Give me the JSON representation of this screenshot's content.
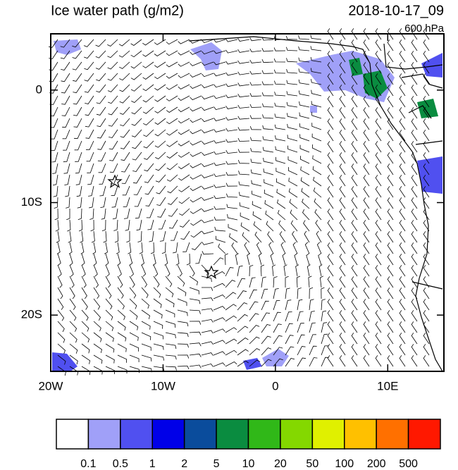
{
  "title": "Ice water path (g/m2)",
  "date": "2018-10-17_09",
  "level": "600 hPa",
  "map": {
    "xlim": [
      -20,
      15
    ],
    "ylim": [
      -25,
      5
    ],
    "xticks": [
      {
        "value": -20,
        "label": "20W"
      },
      {
        "value": -10,
        "label": "10W"
      },
      0,
      {
        "value": 10,
        "label": "10E"
      }
    ],
    "yticks": [
      0,
      {
        "value": -10,
        "label": "10S"
      },
      {
        "value": -20,
        "label": "20S"
      }
    ]
  },
  "colorbar": {
    "levels": [
      0.1,
      0.5,
      1,
      2,
      5,
      10,
      20,
      50,
      100,
      200,
      500
    ],
    "colors": [
      "#ffffff",
      "#a0a0f8",
      "#5050f0",
      "#0000e8",
      "#0a4c9c",
      "#0a8c40",
      "#30b818",
      "#84d800",
      "#e0f000",
      "#ffc000",
      "#ff7000",
      "#ff1800"
    ]
  }
}
